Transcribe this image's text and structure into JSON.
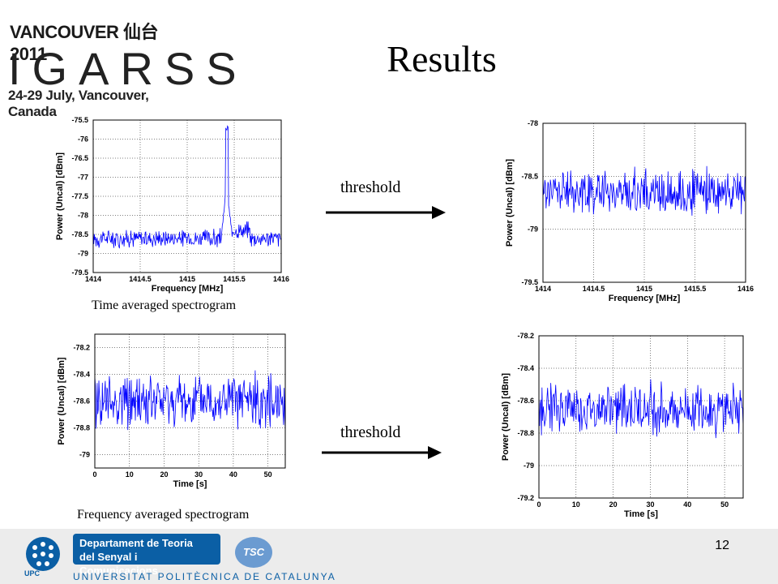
{
  "logo": {
    "line1": "VANCOUVER 仙台 2011",
    "line2": "IGARSS",
    "line3": "24-29 July, Vancouver, Canada"
  },
  "title": "Results",
  "threshold_label": "threshold",
  "captions": {
    "time": "Time averaged spectrogram",
    "freq": "Frequency averaged spectrogram"
  },
  "footer": {
    "department": [
      "Departament de Teoria",
      "del Senyal i Comunicacions"
    ],
    "university": "UNIVERSITAT POLITÈCNICA DE CATALUNYA",
    "upc": "UPC",
    "tsc": "TSC",
    "page_number": "12"
  },
  "colors": {
    "trace": "#0000ff",
    "footer_blue": "#0b5fa5"
  },
  "chart_data": [
    {
      "id": "p1",
      "type": "line",
      "grid": true,
      "xlabel": "Frequency [MHz]",
      "ylabel": "Power (Uncal) [dBm]",
      "xlim": [
        1414,
        1416
      ],
      "ylim": [
        -79.5,
        -75.5
      ],
      "xticks": [
        1414,
        1414.5,
        1415,
        1415.5,
        1416
      ],
      "xtick_labels": [
        "1414",
        "1414.5",
        "1415",
        "1415.5",
        "1416"
      ],
      "yticks": [
        -75.5,
        -76,
        -76.5,
        -77,
        -77.5,
        -78,
        -78.5,
        -79,
        -79.5
      ],
      "ytick_labels": [
        "-75.5",
        "-76",
        "-76.5",
        "-77",
        "-77.5",
        "-78",
        "-78.5",
        "-79",
        "-79.5"
      ],
      "series": [
        {
          "x_range": [
            1414,
            1416
          ],
          "base": -78.6,
          "noise": 0.18,
          "spike_at": 1415.42,
          "spike_top": -75.8
        }
      ]
    },
    {
      "id": "p2",
      "type": "line",
      "grid": true,
      "xlabel": "Frequency [MHz]",
      "ylabel": "Power (Uncal) [dBm]",
      "xlim": [
        1414,
        1416
      ],
      "ylim": [
        -79.5,
        -78
      ],
      "xticks": [
        1414,
        1414.5,
        1415,
        1415.5,
        1416
      ],
      "xtick_labels": [
        "1414",
        "1414.5",
        "1415",
        "1415.5",
        "1416"
      ],
      "yticks": [
        -78,
        -78.5,
        -79,
        -79.5
      ],
      "ytick_labels": [
        "-78",
        "-78.5",
        "-79",
        "-79.5"
      ],
      "series": [
        {
          "x_range": [
            1414,
            1416
          ],
          "base": -78.65,
          "noise": 0.16
        }
      ]
    },
    {
      "id": "p3",
      "type": "line",
      "grid": true,
      "xlabel": "Time [s]",
      "ylabel": "Power (Uncal) [dBm]",
      "xlim": [
        0,
        55
      ],
      "ylim": [
        -79.1,
        -78.1
      ],
      "xticks": [
        0,
        10,
        20,
        30,
        40,
        50
      ],
      "xtick_labels": [
        "0",
        "10",
        "20",
        "30",
        "40",
        "50"
      ],
      "yticks": [
        -78.2,
        -78.4,
        -78.6,
        -78.8,
        -79
      ],
      "ytick_labels": [
        "-78.2",
        "-78.4",
        "-78.6",
        "-78.8",
        "-79"
      ],
      "series": [
        {
          "x_range": [
            0,
            55
          ],
          "base": -78.6,
          "noise": 0.15
        }
      ]
    },
    {
      "id": "p4",
      "type": "line",
      "grid": true,
      "xlabel": "Time [s]",
      "ylabel": "Power (Uncal) [dBm]",
      "xlim": [
        0,
        55
      ],
      "ylim": [
        -79.2,
        -78.2
      ],
      "xticks": [
        0,
        10,
        20,
        30,
        40,
        50
      ],
      "xtick_labels": [
        "0",
        "10",
        "20",
        "30",
        "40",
        "50"
      ],
      "yticks": [
        -78.2,
        -78.4,
        -78.6,
        -78.8,
        -79,
        -79.2
      ],
      "ytick_labels": [
        "-78.2",
        "-78.4",
        "-78.6",
        "-78.8",
        "-79",
        "-79.2"
      ],
      "series": [
        {
          "x_range": [
            0,
            55
          ],
          "base": -78.65,
          "noise": 0.12
        }
      ]
    }
  ]
}
